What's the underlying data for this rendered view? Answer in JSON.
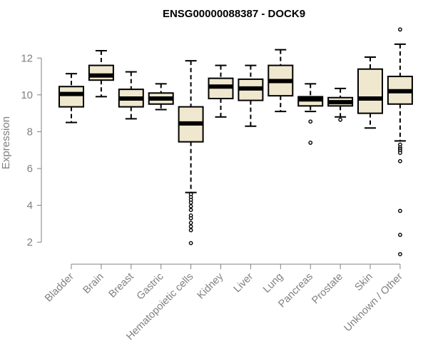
{
  "chart_data": {
    "type": "boxplot",
    "title": "ENSG00000088387 - DOCK9",
    "xlabel": "",
    "ylabel": "Expression",
    "ylim": [
      1.0,
      13.6
    ],
    "yticks": [
      2,
      4,
      6,
      8,
      10,
      12
    ],
    "grid": false,
    "legend": "none",
    "colors": {
      "box_fill": "#efe8cf",
      "stroke": "#000000",
      "axis": "#808080",
      "label": "#808080"
    },
    "categories": [
      "Bladder",
      "Brain",
      "Breast",
      "Gastric",
      "Hematopoietic cells",
      "Kidney",
      "Liver",
      "Lung",
      "Pancreas",
      "Prostate",
      "Skin",
      "Unknown / Other"
    ],
    "boxes": [
      {
        "category": "Bladder",
        "whisker_low": 8.5,
        "q1": 9.35,
        "median": 10.05,
        "q3": 10.45,
        "whisker_high": 11.15,
        "outliers": []
      },
      {
        "category": "Brain",
        "whisker_low": 9.9,
        "q1": 10.8,
        "median": 11.05,
        "q3": 11.6,
        "whisker_high": 12.4,
        "outliers": []
      },
      {
        "category": "Breast",
        "whisker_low": 8.7,
        "q1": 9.35,
        "median": 9.8,
        "q3": 10.3,
        "whisker_high": 11.25,
        "outliers": []
      },
      {
        "category": "Gastric",
        "whisker_low": 9.2,
        "q1": 9.5,
        "median": 9.8,
        "q3": 10.1,
        "whisker_high": 10.6,
        "outliers": []
      },
      {
        "category": "Hematopoietic cells",
        "whisker_low": 4.7,
        "q1": 7.45,
        "median": 8.45,
        "q3": 9.35,
        "whisker_high": 11.85,
        "outliers": [
          4.6,
          4.45,
          4.3,
          4.15,
          3.95,
          3.75,
          3.45,
          3.3,
          3.05,
          2.85,
          2.65,
          1.95
        ]
      },
      {
        "category": "Kidney",
        "whisker_low": 8.8,
        "q1": 9.8,
        "median": 10.45,
        "q3": 10.9,
        "whisker_high": 11.6,
        "outliers": []
      },
      {
        "category": "Liver",
        "whisker_low": 8.3,
        "q1": 9.7,
        "median": 10.35,
        "q3": 10.85,
        "whisker_high": 11.6,
        "outliers": []
      },
      {
        "category": "Lung",
        "whisker_low": 9.1,
        "q1": 9.95,
        "median": 10.75,
        "q3": 11.6,
        "whisker_high": 12.45,
        "outliers": []
      },
      {
        "category": "Pancreas",
        "whisker_low": 9.1,
        "q1": 9.4,
        "median": 9.75,
        "q3": 9.9,
        "whisker_high": 10.6,
        "outliers": [
          8.55,
          7.4
        ]
      },
      {
        "category": "Prostate",
        "whisker_low": 8.8,
        "q1": 9.4,
        "median": 9.6,
        "q3": 9.85,
        "whisker_high": 10.35,
        "outliers": [
          8.65
        ]
      },
      {
        "category": "Skin",
        "whisker_low": 8.2,
        "q1": 9.0,
        "median": 9.8,
        "q3": 11.4,
        "whisker_high": 12.05,
        "outliers": []
      },
      {
        "category": "Unknown / Other",
        "whisker_low": 7.5,
        "q1": 9.5,
        "median": 10.2,
        "q3": 11.0,
        "whisker_high": 12.75,
        "outliers": [
          13.55,
          7.3,
          7.15,
          7.05,
          6.95,
          6.85,
          6.4,
          3.7,
          2.4,
          1.35
        ]
      }
    ]
  }
}
